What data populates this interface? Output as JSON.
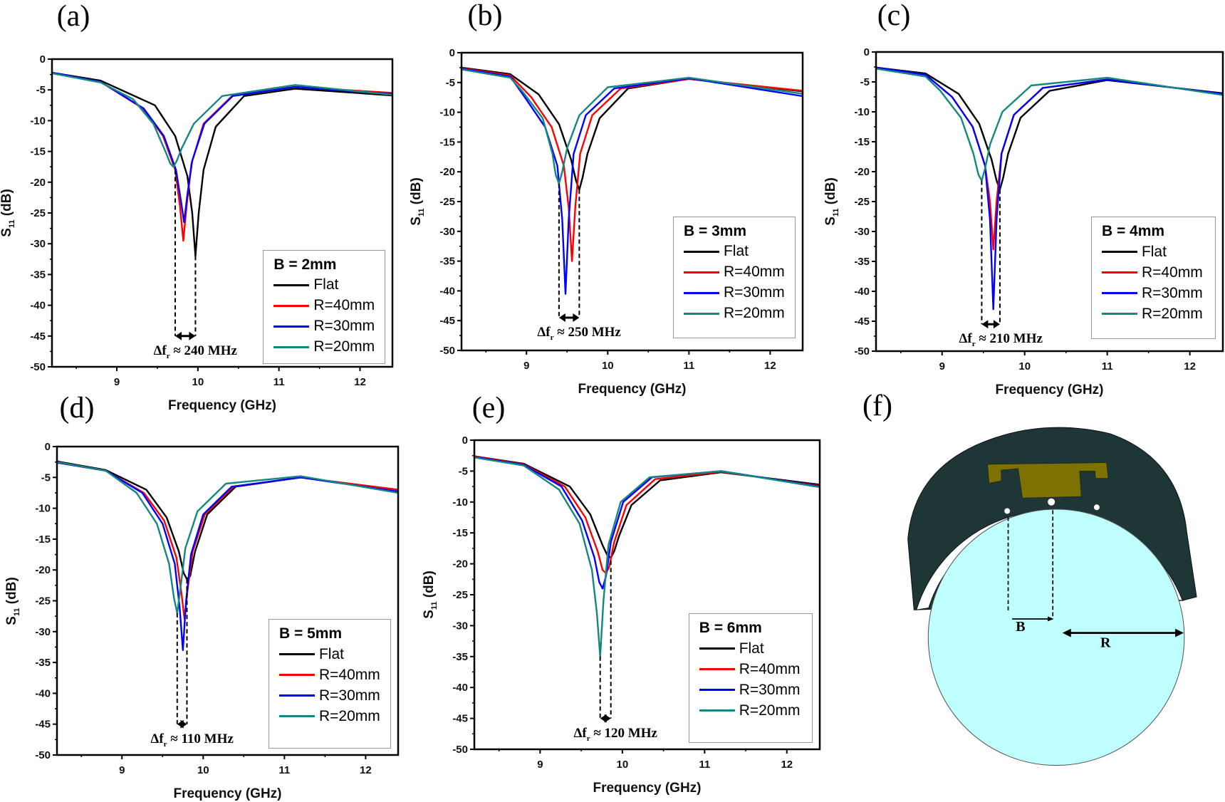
{
  "chart_data": [
    {
      "type": "line",
      "panel_label": "(a)",
      "title": "",
      "xlabel": "Frequency (GHz)",
      "ylabel_main": "S",
      "ylabel_sub": "11",
      "ylabel_unit": " (dB)",
      "xlim": [
        8.2,
        12.4
      ],
      "ylim": [
        -50,
        0
      ],
      "xticks": [
        "9",
        "10",
        "11",
        "12"
      ],
      "yticks": [
        "0",
        "-5",
        "-10",
        "-15",
        "-20",
        "-25",
        "-30",
        "-35",
        "-40",
        "-45",
        "-50"
      ],
      "legend_title": "B = 2mm",
      "legend_position": "bottom-right",
      "annotation": {
        "prefix": "Δf",
        "sub": "r",
        "text": " ≈ 240 MHz",
        "x": [
          9.72,
          9.97
        ],
        "from_y": [
          -18,
          -32
        ],
        "arrow_y": -45
      },
      "series": [
        {
          "name": "Flat",
          "color": "#000000",
          "x": [
            8.2,
            8.8,
            9.47,
            9.72,
            9.87,
            9.93,
            9.97,
            10.01,
            10.07,
            10.22,
            10.57,
            11.2,
            12.4
          ],
          "y": [
            -2.2,
            -3.5,
            -7.5,
            -12.5,
            -19,
            -25,
            -32,
            -25,
            -18,
            -11,
            -6,
            -4.8,
            -5.9
          ]
        },
        {
          "name": "R=40mm",
          "color": "#ff0000",
          "x": [
            8.2,
            8.8,
            9.32,
            9.57,
            9.72,
            9.78,
            9.82,
            9.86,
            9.92,
            10.07,
            10.42,
            11.2,
            12.4
          ],
          "y": [
            -2.2,
            -3.7,
            -8,
            -12.5,
            -18,
            -24,
            -29.5,
            -24,
            -17,
            -10.5,
            -6,
            -4.5,
            -5.5
          ]
        },
        {
          "name": "R=30mm",
          "color": "#0000ff",
          "x": [
            8.2,
            8.8,
            9.33,
            9.58,
            9.73,
            9.79,
            9.83,
            9.87,
            9.93,
            10.08,
            10.43,
            11.2,
            12.4
          ],
          "y": [
            -2.2,
            -3.7,
            -8,
            -12.5,
            -18,
            -23,
            -26.5,
            -22,
            -16.5,
            -10.5,
            -6,
            -4.5,
            -5.7
          ]
        },
        {
          "name": "R=20mm",
          "color": "#138780",
          "x": [
            8.2,
            8.8,
            9.2,
            9.45,
            9.6,
            9.66,
            9.7,
            9.74,
            9.8,
            9.95,
            10.3,
            11.2,
            12.4
          ],
          "y": [
            -2.3,
            -3.8,
            -6.5,
            -10.5,
            -15,
            -17,
            -17.5,
            -16.5,
            -14.5,
            -10.5,
            -6,
            -4.2,
            -5.8
          ]
        }
      ]
    },
    {
      "type": "line",
      "panel_label": "(b)",
      "title": "",
      "xlabel": "Frequency (GHz)",
      "ylabel_main": "S",
      "ylabel_sub": "11",
      "ylabel_unit": " (dB)",
      "xlim": [
        8.2,
        12.4
      ],
      "ylim": [
        -50,
        0
      ],
      "xticks": [
        "9",
        "10",
        "11",
        "12"
      ],
      "yticks": [
        "0",
        "-5",
        "-10",
        "-15",
        "-20",
        "-25",
        "-30",
        "-35",
        "-40",
        "-45",
        "-50"
      ],
      "legend_title": "B = 3mm",
      "legend_position": "bottom-right",
      "annotation": {
        "prefix": "Δf",
        "sub": "r",
        "text": " ≈ 250 MHz",
        "x": [
          9.4,
          9.65
        ],
        "from_y": [
          -22,
          -23
        ],
        "arrow_y": -44.5
      },
      "series": [
        {
          "name": "Flat",
          "color": "#000000",
          "x": [
            8.2,
            8.8,
            9.15,
            9.4,
            9.55,
            9.61,
            9.65,
            9.69,
            9.75,
            9.9,
            10.25,
            11.0,
            12.4
          ],
          "y": [
            -2.5,
            -3.6,
            -7,
            -12,
            -18,
            -21.5,
            -23,
            -21,
            -17,
            -11,
            -6,
            -4.4,
            -6.5
          ]
        },
        {
          "name": "R=40mm",
          "color": "#ff0000",
          "x": [
            8.2,
            8.8,
            9.06,
            9.31,
            9.46,
            9.52,
            9.56,
            9.6,
            9.66,
            9.81,
            10.16,
            11.0,
            12.4
          ],
          "y": [
            -2.6,
            -3.8,
            -7.5,
            -12.5,
            -19,
            -26,
            -35,
            -26,
            -17,
            -10.5,
            -6,
            -4.4,
            -6.4
          ]
        },
        {
          "name": "R=30mm",
          "color": "#0000ff",
          "x": [
            8.2,
            8.8,
            8.98,
            9.23,
            9.38,
            9.44,
            9.48,
            9.52,
            9.58,
            9.73,
            10.08,
            11.0,
            12.4
          ],
          "y": [
            -2.7,
            -4,
            -7.5,
            -12.5,
            -19,
            -28,
            -40.5,
            -28,
            -17,
            -10.5,
            -6,
            -4.3,
            -7.3
          ]
        },
        {
          "name": "R=20mm",
          "color": "#138780",
          "x": [
            8.2,
            8.8,
            8.95,
            9.2,
            9.32,
            9.36,
            9.4,
            9.44,
            9.5,
            9.65,
            10.0,
            11.0,
            12.4
          ],
          "y": [
            -2.8,
            -4.2,
            -6.5,
            -11,
            -17,
            -20.5,
            -22,
            -20,
            -16,
            -10.5,
            -5.8,
            -4.2,
            -6.9
          ]
        }
      ]
    },
    {
      "type": "line",
      "panel_label": "(c)",
      "title": "",
      "xlabel": "Frequency (GHz)",
      "ylabel_main": "S",
      "ylabel_sub": "11",
      "ylabel_unit": " (dB)",
      "xlim": [
        8.2,
        12.4
      ],
      "ylim": [
        -50,
        0
      ],
      "xticks": [
        "9",
        "10",
        "11",
        "12"
      ],
      "yticks": [
        "0",
        "-5",
        "-10",
        "-15",
        "-20",
        "-25",
        "-30",
        "-35",
        "-40",
        "-45",
        "-50"
      ],
      "legend_title": "B = 4mm",
      "legend_position": "bottom-right",
      "annotation": {
        "prefix": "Δf",
        "sub": "r",
        "text": " ≈ 210 MHz",
        "x": [
          9.48,
          9.7
        ],
        "from_y": [
          -21.5,
          -23
        ],
        "arrow_y": -45.5
      },
      "series": [
        {
          "name": "Flat",
          "color": "#000000",
          "x": [
            8.2,
            8.8,
            9.2,
            9.45,
            9.6,
            9.66,
            9.7,
            9.74,
            9.8,
            9.95,
            10.3,
            11.0,
            12.4
          ],
          "y": [
            -2.6,
            -3.6,
            -7,
            -12,
            -18,
            -21.5,
            -23,
            -21,
            -17,
            -11,
            -6.5,
            -4.7,
            -6.9
          ]
        },
        {
          "name": "R=40mm",
          "color": "#ff0000",
          "x": [
            8.2,
            8.8,
            9.12,
            9.37,
            9.52,
            9.58,
            9.62,
            9.66,
            9.72,
            9.87,
            10.22,
            11.0,
            12.4
          ],
          "y": [
            -2.6,
            -3.8,
            -7.5,
            -12.5,
            -19,
            -25,
            -33,
            -25,
            -17,
            -10.5,
            -6,
            -4.6,
            -7
          ]
        },
        {
          "name": "R=30mm",
          "color": "#0000ff",
          "x": [
            8.2,
            8.8,
            9.12,
            9.37,
            9.52,
            9.58,
            9.62,
            9.66,
            9.72,
            9.87,
            10.22,
            11.0,
            12.4
          ],
          "y": [
            -2.6,
            -3.8,
            -7.5,
            -12.5,
            -19,
            -28,
            -43,
            -28,
            -17,
            -10.5,
            -6,
            -4.6,
            -7
          ]
        },
        {
          "name": "R=20mm",
          "color": "#138780",
          "x": [
            8.2,
            8.8,
            8.98,
            9.23,
            9.38,
            9.44,
            9.48,
            9.52,
            9.58,
            9.73,
            10.08,
            11.0,
            12.4
          ],
          "y": [
            -2.8,
            -4.1,
            -6.5,
            -11,
            -17,
            -20.5,
            -21.5,
            -19.5,
            -15.5,
            -10,
            -5.6,
            -4.3,
            -7.2
          ]
        }
      ]
    },
    {
      "type": "line",
      "panel_label": "(d)",
      "title": "",
      "xlabel": "Frequency (GHz)",
      "ylabel_main": "S",
      "ylabel_sub": "11",
      "ylabel_unit": " (dB)",
      "xlim": [
        8.2,
        12.4
      ],
      "ylim": [
        -50,
        0
      ],
      "xticks": [
        "9",
        "10",
        "11",
        "12"
      ],
      "yticks": [
        "0",
        "-5",
        "-10",
        "-15",
        "-20",
        "-25",
        "-30",
        "-35",
        "-40",
        "-45",
        "-50"
      ],
      "legend_title": "B = 5mm",
      "legend_position": "bottom-right",
      "annotation": {
        "prefix": "Δf",
        "sub": "r",
        "text": " ≈ 110 MHz",
        "x": [
          9.68,
          9.8
        ],
        "from_y": [
          -27,
          -21.5
        ],
        "arrow_y": -45
      },
      "series": [
        {
          "name": "Flat",
          "color": "#000000",
          "x": [
            8.2,
            8.8,
            9.3,
            9.55,
            9.7,
            9.76,
            9.8,
            9.84,
            9.9,
            10.05,
            10.4,
            11.2,
            12.4
          ],
          "y": [
            -2.4,
            -3.8,
            -7,
            -11.5,
            -17,
            -20.5,
            -21.5,
            -21,
            -17,
            -11,
            -6.5,
            -5,
            -7
          ]
        },
        {
          "name": "R=40mm",
          "color": "#ff0000",
          "x": [
            8.2,
            8.8,
            9.27,
            9.52,
            9.67,
            9.73,
            9.77,
            9.81,
            9.87,
            10.02,
            10.37,
            11.2,
            12.4
          ],
          "y": [
            -2.6,
            -3.9,
            -7.5,
            -12,
            -18,
            -23.5,
            -28,
            -23,
            -17,
            -11,
            -6.5,
            -5,
            -7
          ]
        },
        {
          "name": "R=30mm",
          "color": "#0000ff",
          "x": [
            8.2,
            8.8,
            9.25,
            9.5,
            9.65,
            9.71,
            9.75,
            9.79,
            9.85,
            10.0,
            10.35,
            11.2,
            12.4
          ],
          "y": [
            -2.6,
            -3.9,
            -7.5,
            -12.5,
            -19,
            -26,
            -33,
            -25,
            -17.5,
            -11,
            -6.5,
            -5,
            -7.3
          ]
        },
        {
          "name": "R=20mm",
          "color": "#138780",
          "x": [
            8.2,
            8.8,
            9.18,
            9.43,
            9.58,
            9.64,
            9.68,
            9.72,
            9.78,
            9.93,
            10.28,
            11.2,
            12.4
          ],
          "y": [
            -2.5,
            -3.9,
            -7.5,
            -12.5,
            -19,
            -24.5,
            -27,
            -23,
            -16.5,
            -10.5,
            -6,
            -4.8,
            -7.5
          ]
        }
      ]
    },
    {
      "type": "line",
      "panel_label": "(e)",
      "title": "",
      "xlabel": "Frequency (GHz)",
      "ylabel_main": "S",
      "ylabel_sub": "11",
      "ylabel_unit": " (dB)",
      "xlim": [
        8.2,
        12.4
      ],
      "ylim": [
        -50,
        0
      ],
      "xticks": [
        "9",
        "10",
        "11",
        "12"
      ],
      "yticks": [
        "0",
        "-5",
        "-10",
        "-15",
        "-20",
        "-25",
        "-30",
        "-35",
        "-40",
        "-45",
        "-50"
      ],
      "legend_title": "B = 6mm",
      "legend_position": "bottom-right",
      "annotation": {
        "prefix": "Δf",
        "sub": "r",
        "text": " ≈ 120 MHz",
        "x": [
          9.73,
          9.86
        ],
        "from_y": [
          -35,
          -19.5
        ],
        "arrow_y": -45
      },
      "series": [
        {
          "name": "Flat",
          "color": "#000000",
          "x": [
            8.2,
            8.8,
            9.36,
            9.61,
            9.76,
            9.82,
            9.86,
            9.9,
            9.96,
            10.11,
            10.46,
            11.2,
            12.4
          ],
          "y": [
            -2.6,
            -3.8,
            -7.5,
            -12,
            -17,
            -18.7,
            -19,
            -18,
            -15.5,
            -10.5,
            -6.5,
            -5.2,
            -7.2
          ]
        },
        {
          "name": "R=40mm",
          "color": "#ff0000",
          "x": [
            8.2,
            8.8,
            9.3,
            9.55,
            9.7,
            9.76,
            9.8,
            9.84,
            9.9,
            10.05,
            10.4,
            11.2,
            12.4
          ],
          "y": [
            -2.6,
            -3.9,
            -7.5,
            -12.5,
            -18,
            -21,
            -21.5,
            -20.5,
            -16.5,
            -10.5,
            -6.3,
            -5.1,
            -7.4
          ]
        },
        {
          "name": "R=30mm",
          "color": "#0000ff",
          "x": [
            8.2,
            8.8,
            9.26,
            9.51,
            9.66,
            9.72,
            9.76,
            9.8,
            9.86,
            10.01,
            10.36,
            11.2,
            12.4
          ],
          "y": [
            -2.7,
            -4,
            -7.5,
            -13,
            -19,
            -23,
            -24,
            -22,
            -16.5,
            -10,
            -6,
            -5,
            -7.5
          ]
        },
        {
          "name": "R=20mm",
          "color": "#138780",
          "x": [
            8.2,
            8.8,
            9.23,
            9.48,
            9.63,
            9.69,
            9.73,
            9.77,
            9.83,
            9.98,
            10.33,
            11.2,
            12.4
          ],
          "y": [
            -2.8,
            -4.1,
            -8,
            -13.5,
            -21,
            -28,
            -35,
            -26,
            -17,
            -10,
            -6,
            -5,
            -7.6
          ]
        }
      ]
    }
  ],
  "diagram": {
    "panel_label": "(f)",
    "label_B": "B",
    "label_R": "R",
    "colors": {
      "substrate": "#1f3636",
      "patch": "#7d7200",
      "body": "#bfffff",
      "gap": "#ffffff"
    }
  }
}
